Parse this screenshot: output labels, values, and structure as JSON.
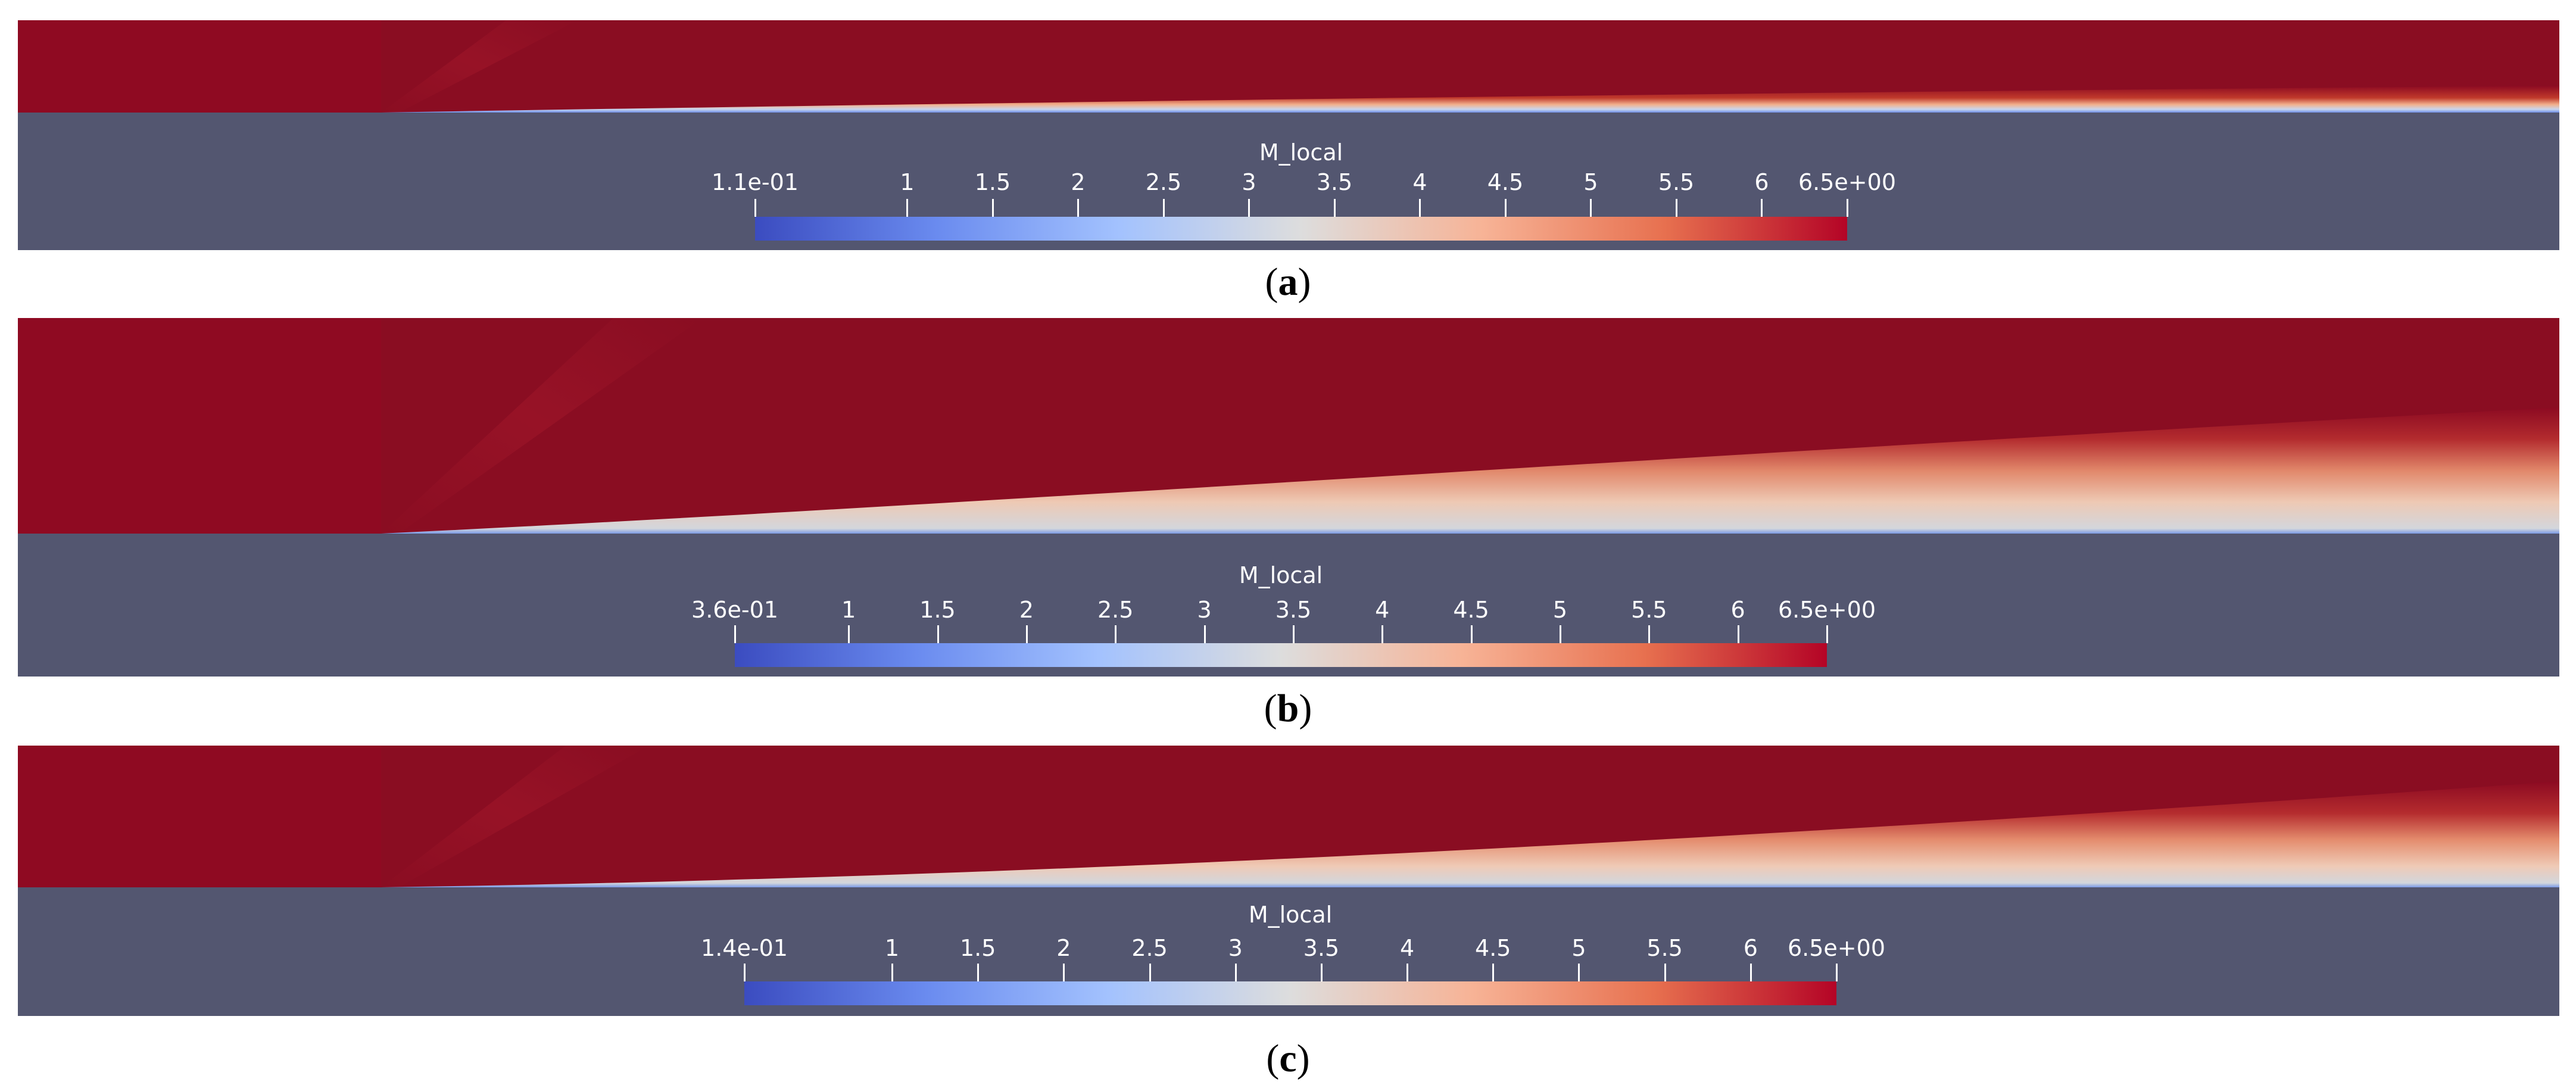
{
  "colormap": {
    "stops": [
      "#3b4cc0",
      "#6a8bef",
      "#a3c2fe",
      "#dddddd",
      "#f7b396",
      "#e7704f",
      "#b40426"
    ]
  },
  "panels": [
    {
      "id": "a",
      "caption_open": "(",
      "caption_letter": "a",
      "caption_close": ")",
      "colorbar": {
        "title": "M_local",
        "min_label": "1.1e-01",
        "max_label": "6.5e+00",
        "min": 0.11,
        "max": 6.5,
        "ticks": [
          {
            "label": "1",
            "value": 1
          },
          {
            "label": "1.5",
            "value": 1.5
          },
          {
            "label": "2",
            "value": 2
          },
          {
            "label": "2.5",
            "value": 2.5
          },
          {
            "label": "3",
            "value": 3
          },
          {
            "label": "3.5",
            "value": 3.5
          },
          {
            "label": "4",
            "value": 4
          },
          {
            "label": "4.5",
            "value": 4.5
          },
          {
            "label": "5",
            "value": 5
          },
          {
            "label": "5.5",
            "value": 5.5
          },
          {
            "label": "6",
            "value": 6
          }
        ]
      }
    },
    {
      "id": "b",
      "caption_open": "(",
      "caption_letter": "b",
      "caption_close": ")",
      "colorbar": {
        "title": "M_local",
        "min_label": "3.6e-01",
        "max_label": "6.5e+00",
        "min": 0.36,
        "max": 6.5,
        "ticks": [
          {
            "label": "1",
            "value": 1
          },
          {
            "label": "1.5",
            "value": 1.5
          },
          {
            "label": "2",
            "value": 2
          },
          {
            "label": "2.5",
            "value": 2.5
          },
          {
            "label": "3",
            "value": 3
          },
          {
            "label": "3.5",
            "value": 3.5
          },
          {
            "label": "4",
            "value": 4
          },
          {
            "label": "4.5",
            "value": 4.5
          },
          {
            "label": "5",
            "value": 5
          },
          {
            "label": "5.5",
            "value": 5.5
          },
          {
            "label": "6",
            "value": 6
          }
        ]
      }
    },
    {
      "id": "c",
      "caption_open": "(",
      "caption_letter": "c",
      "caption_close": ")",
      "colorbar": {
        "title": "M_local",
        "min_label": "1.4e-01",
        "max_label": "6.5e+00",
        "min": 0.14,
        "max": 6.5,
        "ticks": [
          {
            "label": "1",
            "value": 1
          },
          {
            "label": "1.5",
            "value": 1.5
          },
          {
            "label": "2",
            "value": 2
          },
          {
            "label": "2.5",
            "value": 2.5
          },
          {
            "label": "3",
            "value": 3
          },
          {
            "label": "3.5",
            "value": 3.5
          },
          {
            "label": "4",
            "value": 4
          },
          {
            "label": "4.5",
            "value": 4.5
          },
          {
            "label": "5",
            "value": 5
          },
          {
            "label": "5.5",
            "value": 5.5
          },
          {
            "label": "6",
            "value": 6
          }
        ]
      }
    }
  ]
}
